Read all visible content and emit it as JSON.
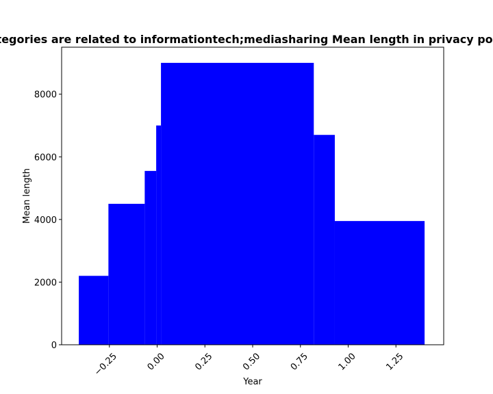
{
  "chart_data": {
    "type": "bar",
    "title": "Categories are related to informationtech;mediasharing Mean length in privacy policies",
    "xlabel": "Year",
    "ylabel": "Mean length",
    "xlim": [
      -0.5,
      1.5
    ],
    "ylim": [
      0,
      9500
    ],
    "x_ticks": [
      -0.25,
      0.0,
      0.25,
      0.5,
      0.75,
      1.0,
      1.25
    ],
    "x_tick_labels": [
      "−0.25",
      "0.00",
      "0.25",
      "0.50",
      "0.75",
      "1.00",
      "1.25"
    ],
    "y_ticks": [
      0,
      2000,
      4000,
      6000,
      8000
    ],
    "y_tick_labels": [
      "0",
      "2000",
      "4000",
      "6000",
      "8000"
    ],
    "bar_color": "#0000ff",
    "bars": [
      {
        "x0": -0.41,
        "x1": -0.255,
        "value": 2200
      },
      {
        "x0": -0.255,
        "x1": -0.065,
        "value": 4500
      },
      {
        "x0": -0.065,
        "x1": -0.005,
        "value": 5550
      },
      {
        "x0": -0.005,
        "x1": 0.02,
        "value": 7000
      },
      {
        "x0": 0.02,
        "x1": 0.82,
        "value": 9000
      },
      {
        "x0": 0.82,
        "x1": 0.93,
        "value": 6700
      },
      {
        "x0": 0.93,
        "x1": 1.4,
        "value": 3950
      }
    ],
    "grid": false,
    "legend": "none"
  }
}
